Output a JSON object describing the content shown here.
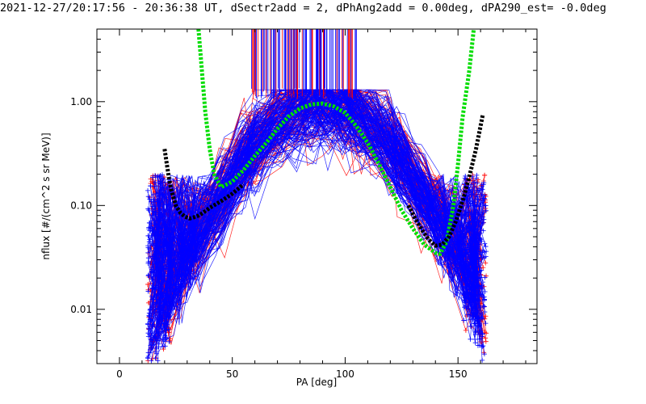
{
  "chart_data": {
    "type": "line",
    "title": "2021-12-27/20:17:56 - 20:36:38 UT, dSectr2add = 2, dPhAng2add = 0.00deg, dPA290_est=  -0.0deg",
    "xlabel": "PA [deg]",
    "ylabel": "nflux [#/(cm^2 s sr MeV)]",
    "xlim": [
      -10,
      185
    ],
    "ylim": [
      0.003,
      5
    ],
    "yscale": "log",
    "x_ticks": [
      0,
      50,
      100,
      150
    ],
    "x_tick_labels": [
      "0",
      "50",
      "100",
      "150"
    ],
    "y_ticks": [
      0.01,
      0.1,
      1.0
    ],
    "y_tick_labels": [
      "0.01",
      "0.10",
      "1.00"
    ],
    "grid": false,
    "legend": "none",
    "series": [
      {
        "color": "#00dd00",
        "style": "thick dashed",
        "x": [
          35,
          38,
          40,
          42,
          45,
          50,
          55,
          60,
          65,
          70,
          75,
          80,
          85,
          90,
          95,
          100,
          105,
          110,
          115,
          120,
          125,
          130,
          135,
          140,
          142,
          145,
          148,
          150,
          152,
          155,
          157
        ],
        "y": [
          5,
          0.8,
          0.35,
          0.2,
          0.15,
          0.17,
          0.22,
          0.3,
          0.4,
          0.55,
          0.72,
          0.86,
          0.94,
          0.96,
          0.9,
          0.78,
          0.58,
          0.4,
          0.25,
          0.15,
          0.09,
          0.06,
          0.042,
          0.035,
          0.034,
          0.045,
          0.1,
          0.25,
          0.7,
          2.0,
          5
        ]
      },
      {
        "color": "#000000",
        "style": "thick dashed",
        "x": [
          20,
          21,
          22,
          23,
          25,
          27,
          29,
          31,
          33,
          35,
          37,
          40,
          45,
          50,
          55
        ],
        "y": [
          0.35,
          0.25,
          0.18,
          0.14,
          0.1,
          0.085,
          0.078,
          0.075,
          0.077,
          0.08,
          0.085,
          0.095,
          0.11,
          0.13,
          0.16
        ]
      },
      {
        "color": "#000000",
        "style": "thick dashed",
        "x": [
          128,
          131,
          134,
          137,
          140,
          143,
          146,
          149,
          152,
          155,
          158,
          161
        ],
        "y": [
          0.1,
          0.075,
          0.058,
          0.047,
          0.041,
          0.042,
          0.05,
          0.07,
          0.11,
          0.19,
          0.35,
          0.75
        ]
      }
    ],
    "colors": {
      "blue": "#0000ff",
      "red": "#ff0000",
      "green": "#00dd00",
      "black": "#000000"
    }
  }
}
